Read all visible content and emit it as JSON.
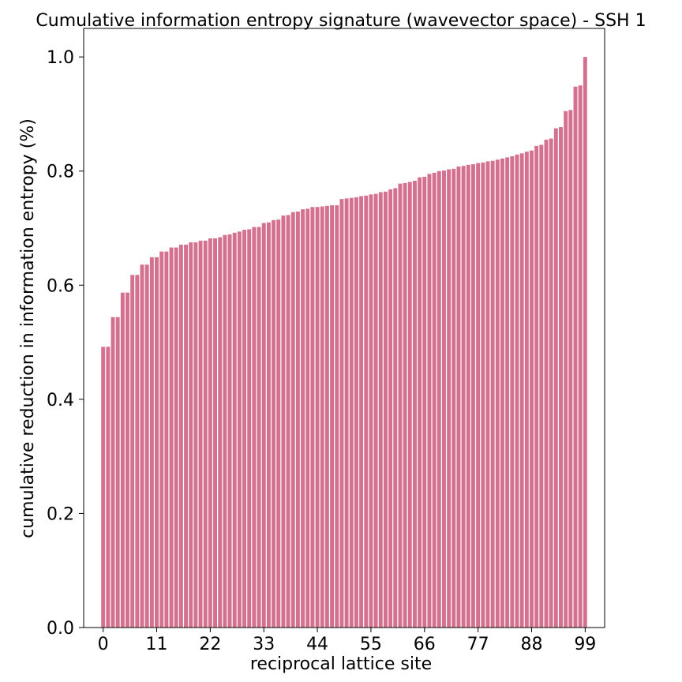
{
  "chart_data": {
    "type": "bar",
    "title": "Cumulative information entropy signature (wavevector space) - SSH 1",
    "xlabel": "reciprocal lattice site",
    "ylabel": "cumulative reduction in information entropy (%)",
    "xlim": [
      -4,
      103
    ],
    "ylim": [
      0,
      1.05
    ],
    "xticks": [
      0,
      11,
      22,
      33,
      44,
      55,
      66,
      77,
      88,
      99
    ],
    "yticks": [
      0.0,
      0.2,
      0.4,
      0.6,
      0.8,
      1.0
    ],
    "ytick_labels": [
      "0.0",
      "0.2",
      "0.4",
      "0.6",
      "0.8",
      "1.0"
    ],
    "bar_color": "#d4718f",
    "grid": false,
    "legend": "none",
    "x": [
      0,
      1,
      2,
      3,
      4,
      5,
      6,
      7,
      8,
      9,
      10,
      11,
      12,
      13,
      14,
      15,
      16,
      17,
      18,
      19,
      20,
      21,
      22,
      23,
      24,
      25,
      26,
      27,
      28,
      29,
      30,
      31,
      32,
      33,
      34,
      35,
      36,
      37,
      38,
      39,
      40,
      41,
      42,
      43,
      44,
      45,
      46,
      47,
      48,
      49,
      50,
      51,
      52,
      53,
      54,
      55,
      56,
      57,
      58,
      59,
      60,
      61,
      62,
      63,
      64,
      65,
      66,
      67,
      68,
      69,
      70,
      71,
      72,
      73,
      74,
      75,
      76,
      77,
      78,
      79,
      80,
      81,
      82,
      83,
      84,
      85,
      86,
      87,
      88,
      89,
      90,
      91,
      92,
      93,
      94,
      95,
      96,
      97,
      98,
      99
    ],
    "values": [
      0.492,
      0.492,
      0.544,
      0.544,
      0.587,
      0.587,
      0.618,
      0.618,
      0.636,
      0.636,
      0.649,
      0.649,
      0.659,
      0.659,
      0.666,
      0.666,
      0.671,
      0.671,
      0.675,
      0.675,
      0.678,
      0.678,
      0.682,
      0.682,
      0.684,
      0.688,
      0.689,
      0.692,
      0.694,
      0.697,
      0.698,
      0.702,
      0.702,
      0.709,
      0.71,
      0.714,
      0.715,
      0.722,
      0.723,
      0.728,
      0.729,
      0.733,
      0.734,
      0.737,
      0.737,
      0.738,
      0.739,
      0.74,
      0.74,
      0.751,
      0.752,
      0.753,
      0.754,
      0.756,
      0.757,
      0.759,
      0.76,
      0.763,
      0.764,
      0.768,
      0.77,
      0.778,
      0.779,
      0.781,
      0.783,
      0.789,
      0.79,
      0.795,
      0.797,
      0.8,
      0.801,
      0.803,
      0.804,
      0.808,
      0.809,
      0.811,
      0.812,
      0.814,
      0.815,
      0.817,
      0.818,
      0.82,
      0.822,
      0.824,
      0.826,
      0.829,
      0.831,
      0.834,
      0.836,
      0.844,
      0.846,
      0.855,
      0.857,
      0.875,
      0.877,
      0.905,
      0.907,
      0.948,
      0.95,
      1.0
    ]
  }
}
